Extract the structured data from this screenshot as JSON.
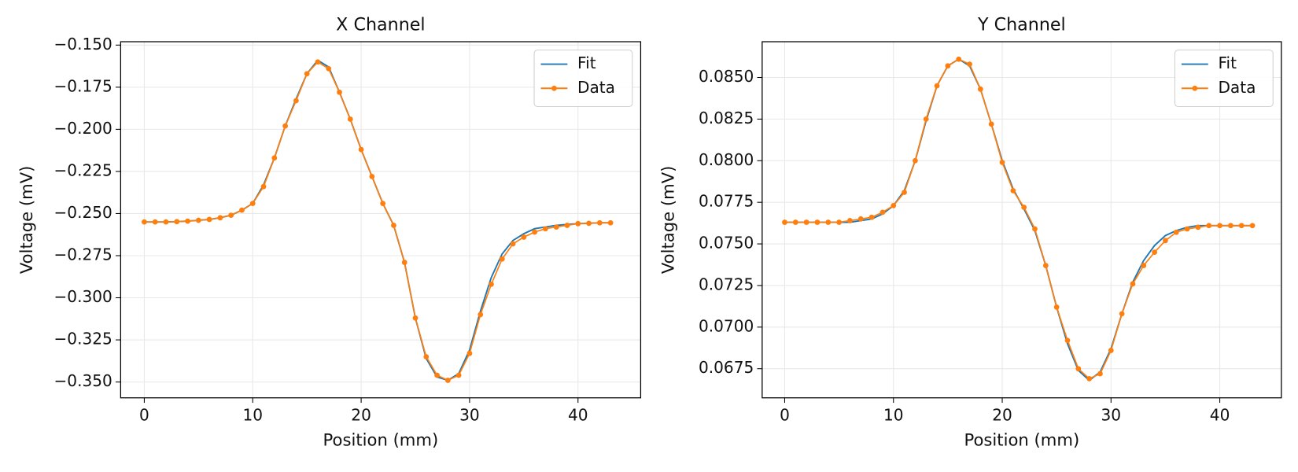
{
  "chart_data": [
    {
      "type": "line",
      "title": "X Channel",
      "xlabel": "Position (mm)",
      "ylabel": "Voltage (mV)",
      "x": [
        0,
        1,
        2,
        3,
        4,
        5,
        6,
        7,
        8,
        9,
        10,
        11,
        12,
        13,
        14,
        15,
        16,
        17,
        18,
        19,
        20,
        21,
        22,
        23,
        24,
        25,
        26,
        27,
        28,
        29,
        30,
        31,
        32,
        33,
        34,
        35,
        36,
        37,
        38,
        39,
        40,
        41,
        42,
        43
      ],
      "series": [
        {
          "name": "Fit",
          "color": "#1f77b4",
          "marker": false,
          "values": [
            -0.255,
            -0.255,
            -0.255,
            -0.2548,
            -0.2545,
            -0.254,
            -0.2535,
            -0.2525,
            -0.251,
            -0.248,
            -0.244,
            -0.233,
            -0.217,
            -0.198,
            -0.182,
            -0.167,
            -0.159,
            -0.163,
            -0.178,
            -0.194,
            -0.212,
            -0.228,
            -0.244,
            -0.257,
            -0.279,
            -0.312,
            -0.336,
            -0.347,
            -0.349,
            -0.345,
            -0.331,
            -0.308,
            -0.288,
            -0.274,
            -0.266,
            -0.262,
            -0.259,
            -0.258,
            -0.257,
            -0.2565,
            -0.256,
            -0.2558,
            -0.2555,
            -0.2555
          ]
        },
        {
          "name": "Data",
          "color": "#ff7f0e",
          "marker": true,
          "values": [
            -0.255,
            -0.255,
            -0.255,
            -0.2548,
            -0.2545,
            -0.254,
            -0.2535,
            -0.2525,
            -0.251,
            -0.248,
            -0.244,
            -0.234,
            -0.217,
            -0.198,
            -0.183,
            -0.167,
            -0.16,
            -0.164,
            -0.178,
            -0.194,
            -0.212,
            -0.228,
            -0.244,
            -0.257,
            -0.279,
            -0.312,
            -0.335,
            -0.346,
            -0.349,
            -0.346,
            -0.333,
            -0.31,
            -0.292,
            -0.277,
            -0.268,
            -0.264,
            -0.261,
            -0.259,
            -0.258,
            -0.257,
            -0.256,
            -0.2558,
            -0.2555,
            -0.2555
          ]
        }
      ],
      "xlim": [
        -2.18,
        45.78
      ],
      "ylim": [
        -0.3594,
        -0.148
      ],
      "xticks": [
        0,
        10,
        20,
        30,
        40
      ],
      "yticks": [
        {
          "value": -0.35,
          "label": "−0.350"
        },
        {
          "value": -0.325,
          "label": "−0.325"
        },
        {
          "value": -0.3,
          "label": "−0.300"
        },
        {
          "value": -0.275,
          "label": "−0.275"
        },
        {
          "value": -0.25,
          "label": "−0.250"
        },
        {
          "value": -0.225,
          "label": "−0.225"
        },
        {
          "value": -0.2,
          "label": "−0.200"
        },
        {
          "value": -0.175,
          "label": "−0.175"
        },
        {
          "value": -0.15,
          "label": "−0.150"
        }
      ],
      "grid": true,
      "legend": "upper right"
    },
    {
      "type": "line",
      "title": "Y Channel",
      "xlabel": "Position (mm)",
      "ylabel": "Voltage (mV)",
      "x": [
        0,
        1,
        2,
        3,
        4,
        5,
        6,
        7,
        8,
        9,
        10,
        11,
        12,
        13,
        14,
        15,
        16,
        17,
        18,
        19,
        20,
        21,
        22,
        23,
        24,
        25,
        26,
        27,
        28,
        29,
        30,
        31,
        32,
        33,
        34,
        35,
        36,
        37,
        38,
        39,
        40,
        41,
        42,
        43
      ],
      "series": [
        {
          "name": "Fit",
          "color": "#1f77b4",
          "marker": false,
          "values": [
            0.0763,
            0.0763,
            0.0763,
            0.0763,
            0.0763,
            0.0763,
            0.0763,
            0.0764,
            0.0765,
            0.0768,
            0.0773,
            0.0782,
            0.08,
            0.0824,
            0.0845,
            0.0857,
            0.0861,
            0.0857,
            0.0843,
            0.0822,
            0.08,
            0.0783,
            0.0771,
            0.0758,
            0.0737,
            0.0712,
            0.069,
            0.0674,
            0.0668,
            0.0673,
            0.0687,
            0.0708,
            0.0727,
            0.074,
            0.0749,
            0.0755,
            0.0758,
            0.076,
            0.0761,
            0.0761,
            0.0761,
            0.0761,
            0.0761,
            0.0761
          ]
        },
        {
          "name": "Data",
          "color": "#ff7f0e",
          "marker": true,
          "values": [
            0.0763,
            0.0763,
            0.0763,
            0.0763,
            0.0763,
            0.0763,
            0.0764,
            0.0765,
            0.0766,
            0.0769,
            0.0773,
            0.0781,
            0.08,
            0.0825,
            0.0845,
            0.0857,
            0.0861,
            0.0858,
            0.0843,
            0.0822,
            0.0799,
            0.0782,
            0.0772,
            0.0759,
            0.0737,
            0.0712,
            0.0692,
            0.0675,
            0.0669,
            0.0672,
            0.0686,
            0.0708,
            0.0726,
            0.0737,
            0.0745,
            0.0752,
            0.0757,
            0.0759,
            0.076,
            0.0761,
            0.0761,
            0.0761,
            0.0761,
            0.0761
          ]
        }
      ],
      "xlim": [
        -2.07,
        45.66
      ],
      "ylim": [
        0.06575,
        0.08715
      ],
      "xticks": [
        0,
        10,
        20,
        30,
        40
      ],
      "yticks": [
        {
          "value": 0.0675,
          "label": "0.0675"
        },
        {
          "value": 0.07,
          "label": "0.0700"
        },
        {
          "value": 0.0725,
          "label": "0.0725"
        },
        {
          "value": 0.075,
          "label": "0.0750"
        },
        {
          "value": 0.0775,
          "label": "0.0775"
        },
        {
          "value": 0.08,
          "label": "0.0800"
        },
        {
          "value": 0.0825,
          "label": "0.0825"
        },
        {
          "value": 0.085,
          "label": "0.0850"
        }
      ],
      "grid": true,
      "legend": "upper right"
    }
  ]
}
